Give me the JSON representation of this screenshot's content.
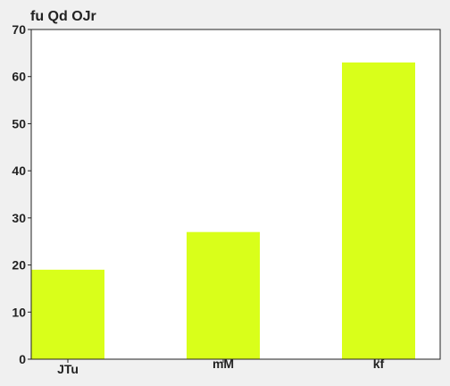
{
  "chart_data": {
    "type": "bar",
    "title": "fu Qd OJr",
    "categories": [
      "JTu",
      "mM",
      "kf"
    ],
    "values": [
      19,
      27,
      63
    ],
    "xlabel": "",
    "ylabel": "",
    "ylim": [
      0,
      70
    ],
    "yticks": [
      0,
      10,
      20,
      30,
      40,
      50,
      60,
      70
    ],
    "grid": false,
    "legend": "none",
    "bar_color": "#d9ff1a",
    "background": "#f0f0f0",
    "plot_background": "#ffffff",
    "axis_color": "#222222"
  }
}
